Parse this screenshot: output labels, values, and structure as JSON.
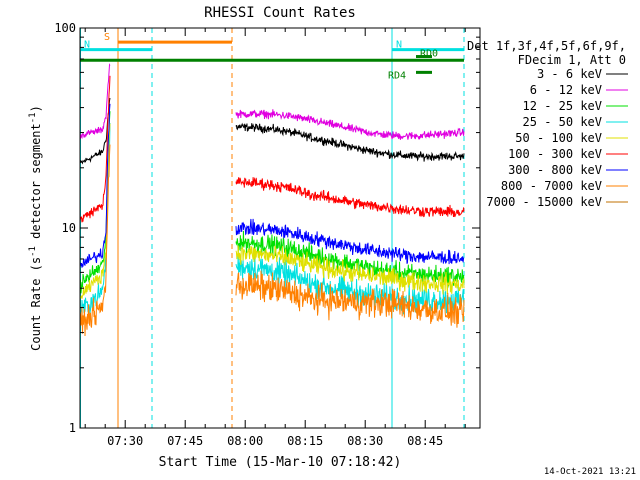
{
  "chart_data": {
    "type": "line",
    "title": "RHESSI Count Rates",
    "xlabel": "Start Time (15-Mar-10 07:18:42)",
    "ylabel": "Count Rate (s",
    "ylabel_sup": "-1",
    "ylabel_mid": " detector segment",
    "ylabel_end": ")",
    "yscale": "log",
    "ylim": [
      1,
      100
    ],
    "xlim_minutes": [
      0,
      100
    ],
    "y_tick_labels": [
      {
        "value": 1,
        "label": "1"
      },
      {
        "value": 10,
        "label": "10"
      },
      {
        "value": 100,
        "label": "100"
      }
    ],
    "x_ticks": [
      {
        "minute": 11.3,
        "label": "07:30"
      },
      {
        "minute": 26.3,
        "label": "07:45"
      },
      {
        "minute": 41.3,
        "label": "08:00"
      },
      {
        "minute": 56.3,
        "label": "08:15"
      },
      {
        "minute": 71.3,
        "label": "08:30"
      },
      {
        "minute": 86.3,
        "label": "08:45"
      }
    ],
    "legend": {
      "header_line1": "Det 1f,3f,4f,5f,6f,9f,",
      "header_line2": "FDecim 1, Att 0",
      "placement": "right"
    },
    "series": [
      {
        "name": "3 - 6 keV",
        "color": "#000000",
        "pre": [
          21,
          24,
          28,
          45
        ],
        "post": [
          32,
          27,
          25,
          22
        ]
      },
      {
        "name": "6 - 12 keV",
        "color": "#e000e0",
        "pre": [
          29,
          31,
          37,
          68
        ],
        "post": [
          37,
          33,
          31,
          29
        ]
      },
      {
        "name": "12 - 25 keV",
        "color": "#00e000",
        "pre": [
          5.2,
          6.5,
          9,
          38
        ],
        "post": [
          8.5,
          7,
          6.5,
          5.5
        ]
      },
      {
        "name": "25 - 50 keV",
        "color": "#00e0e0",
        "pre": [
          3.8,
          4.8,
          7,
          30
        ],
        "post": [
          6.5,
          5,
          4.8,
          4.2
        ]
      },
      {
        "name": "50 - 100 keV",
        "color": "#e0e000",
        "pre": [
          4.6,
          5.8,
          8,
          34
        ],
        "post": [
          7.5,
          6.2,
          6,
          5
        ]
      },
      {
        "name": "100 - 300 keV",
        "color": "#ff0000",
        "pre": [
          11,
          13,
          18,
          55
        ],
        "post": [
          17,
          14,
          13.5,
          11.5
        ]
      },
      {
        "name": "300 - 800 keV",
        "color": "#0000ff",
        "pre": [
          6.5,
          7.5,
          10,
          42
        ],
        "post": [
          10,
          8.5,
          8,
          6.8
        ]
      },
      {
        "name": "800 - 7000 keV",
        "color": "#ff8000",
        "pre": [
          3.3,
          4,
          5.5,
          25
        ],
        "post": [
          5.2,
          4.2,
          4.5,
          3.6
        ]
      },
      {
        "name": "7000 - 15000 keV",
        "color": "#c07000",
        "pre": [],
        "post": []
      }
    ],
    "attenuator_bars": [
      {
        "label": "S",
        "color": "#ff8000",
        "start_minute": 9.5,
        "end_minute": 38,
        "level": 85
      },
      {
        "label": "N",
        "color": "#00e0e0",
        "start_minute": 0,
        "end_minute": 18,
        "level": 78
      },
      {
        "label": "N",
        "color": "#00e0e0",
        "start_minute": 78,
        "end_minute": 96,
        "level": 78
      },
      {
        "label": "",
        "color": "#008000",
        "start_minute": 0,
        "end_minute": 96,
        "level": 69
      },
      {
        "label": "RD0",
        "color": "#008000",
        "start_minute": 84,
        "end_minute": 88,
        "level": 72
      },
      {
        "label": "RD4",
        "color": "#008000",
        "start_minute": 84,
        "end_minute": 88,
        "level": 60
      }
    ],
    "vertical_markers": [
      {
        "minute": 0,
        "color": "#00e0e0",
        "style": "solid"
      },
      {
        "minute": 9.5,
        "color": "#ff8000",
        "style": "solid"
      },
      {
        "minute": 18,
        "color": "#00e0e0",
        "style": "dashed"
      },
      {
        "minute": 38,
        "color": "#ff8000",
        "style": "dashed"
      },
      {
        "minute": 78,
        "color": "#00e0e0",
        "style": "solid"
      },
      {
        "minute": 96,
        "color": "#00e0e0",
        "style": "dashed"
      }
    ],
    "segments": {
      "pre_start": 0,
      "pre_end": 7.5,
      "post_start": 39,
      "post_end": 96
    }
  },
  "footer": {
    "timestamp": "14-Oct-2021 13:21"
  }
}
